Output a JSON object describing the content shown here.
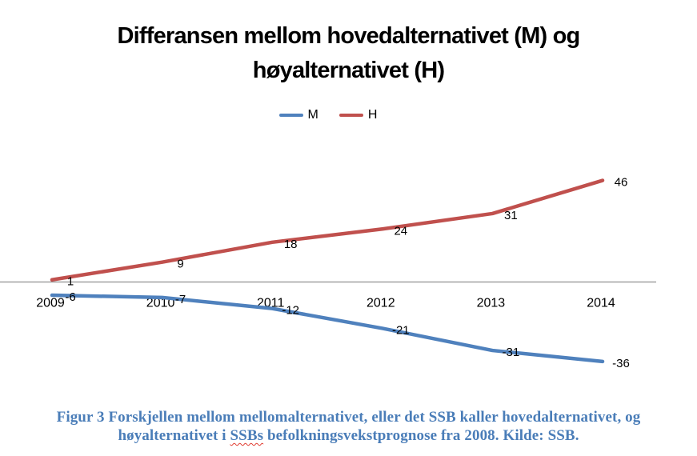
{
  "title": {
    "line1": "Differansen mellom hovedalternativet (M) og",
    "line2": "høyalternativet (H)"
  },
  "legend": {
    "items": [
      {
        "label": "M",
        "color": "#4F81BD"
      },
      {
        "label": "H",
        "color": "#C0504D"
      }
    ]
  },
  "chart_data": {
    "type": "line",
    "x": [
      "2009",
      "2010",
      "2011",
      "2012",
      "2013",
      "2014"
    ],
    "series": [
      {
        "name": "M",
        "color": "#4F81BD",
        "values": [
          -6,
          -7,
          -12,
          -21,
          -31,
          -36
        ]
      },
      {
        "name": "H",
        "color": "#C0504D",
        "values": [
          1,
          9,
          18,
          24,
          31,
          46
        ]
      }
    ],
    "title": "Differansen mellom hovedalternativet (M) og høyalternativet (H)",
    "xlabel": "",
    "ylabel": "",
    "ylim": [
      -45,
      60
    ],
    "grid": false,
    "legend_position": "top-center",
    "data_labels": true,
    "axis_line_color": "#909090",
    "label_color": "#000000"
  },
  "caption": {
    "line1": "Figur 3 Forskjellen mellom mellomalternativet, eller det SSB kaller hovedalternativet, og",
    "line2_before": "høyalternativet i ",
    "line2_misspelled": "SSBs",
    "line2_after": " befolkningsvekstprognose fra 2008. Kilde: SSB.",
    "color": "#4a7db8"
  }
}
